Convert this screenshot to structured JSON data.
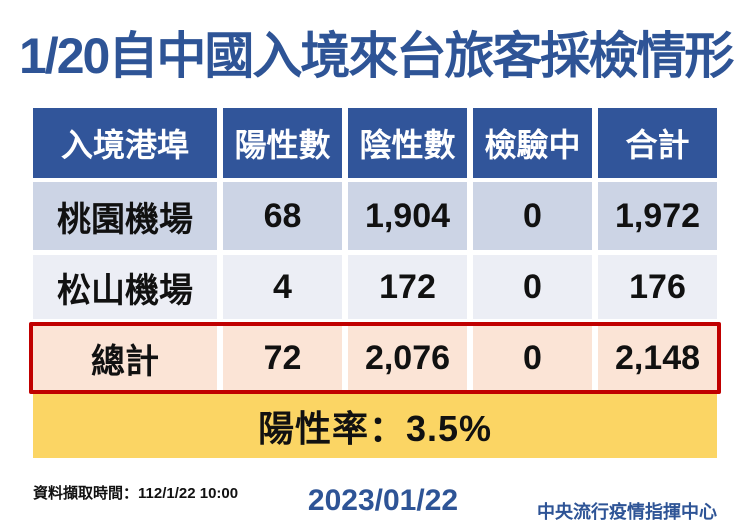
{
  "title": "1/20自中國入境來台旅客採檢情形",
  "table": {
    "headers": [
      "入境港埠",
      "陽性數",
      "陰性數",
      "檢驗中",
      "合計"
    ],
    "rows": [
      [
        "桃園機場",
        "68",
        "1,904",
        "0",
        "1,972"
      ],
      [
        "松山機場",
        "4",
        "172",
        "0",
        "176"
      ]
    ],
    "total": [
      "總計",
      "72",
      "2,076",
      "0",
      "2,148"
    ]
  },
  "banner": {
    "positivity_rate": "陽性率：3.5%"
  },
  "footer": {
    "data_time": "資料擷取時間：112/1/22 10:00",
    "date": "2023/01/22",
    "agency": "中央流行疫情指揮中心"
  },
  "colors": {
    "primary_blue": "#2e5496",
    "header_bg": "#31559a",
    "row_odd_bg": "#ccd4e5",
    "row_even_bg": "#eceef5",
    "total_row_bg": "#fbe4d6",
    "total_row_border": "#c00000",
    "banner_bg": "#fbd564",
    "text_black": "#111111"
  },
  "chart_data": {
    "type": "table",
    "title": "1/20自中國入境來台旅客採檢情形",
    "columns": [
      "入境港埠",
      "陽性數",
      "陰性數",
      "檢驗中",
      "合計"
    ],
    "rows": [
      {
        "入境港埠": "桃園機場",
        "陽性數": 68,
        "陰性數": 1904,
        "檢驗中": 0,
        "合計": 1972
      },
      {
        "入境港埠": "松山機場",
        "陽性數": 4,
        "陰性數": 172,
        "檢驗中": 0,
        "合計": 176
      },
      {
        "入境港埠": "總計",
        "陽性數": 72,
        "陰性數": 2076,
        "檢驗中": 0,
        "合計": 2148
      }
    ],
    "positivity_rate_percent": 3.5,
    "data_capture_time": "112/1/22 10:00",
    "report_date": "2023/01/22",
    "source": "中央流行疫情指揮中心"
  }
}
